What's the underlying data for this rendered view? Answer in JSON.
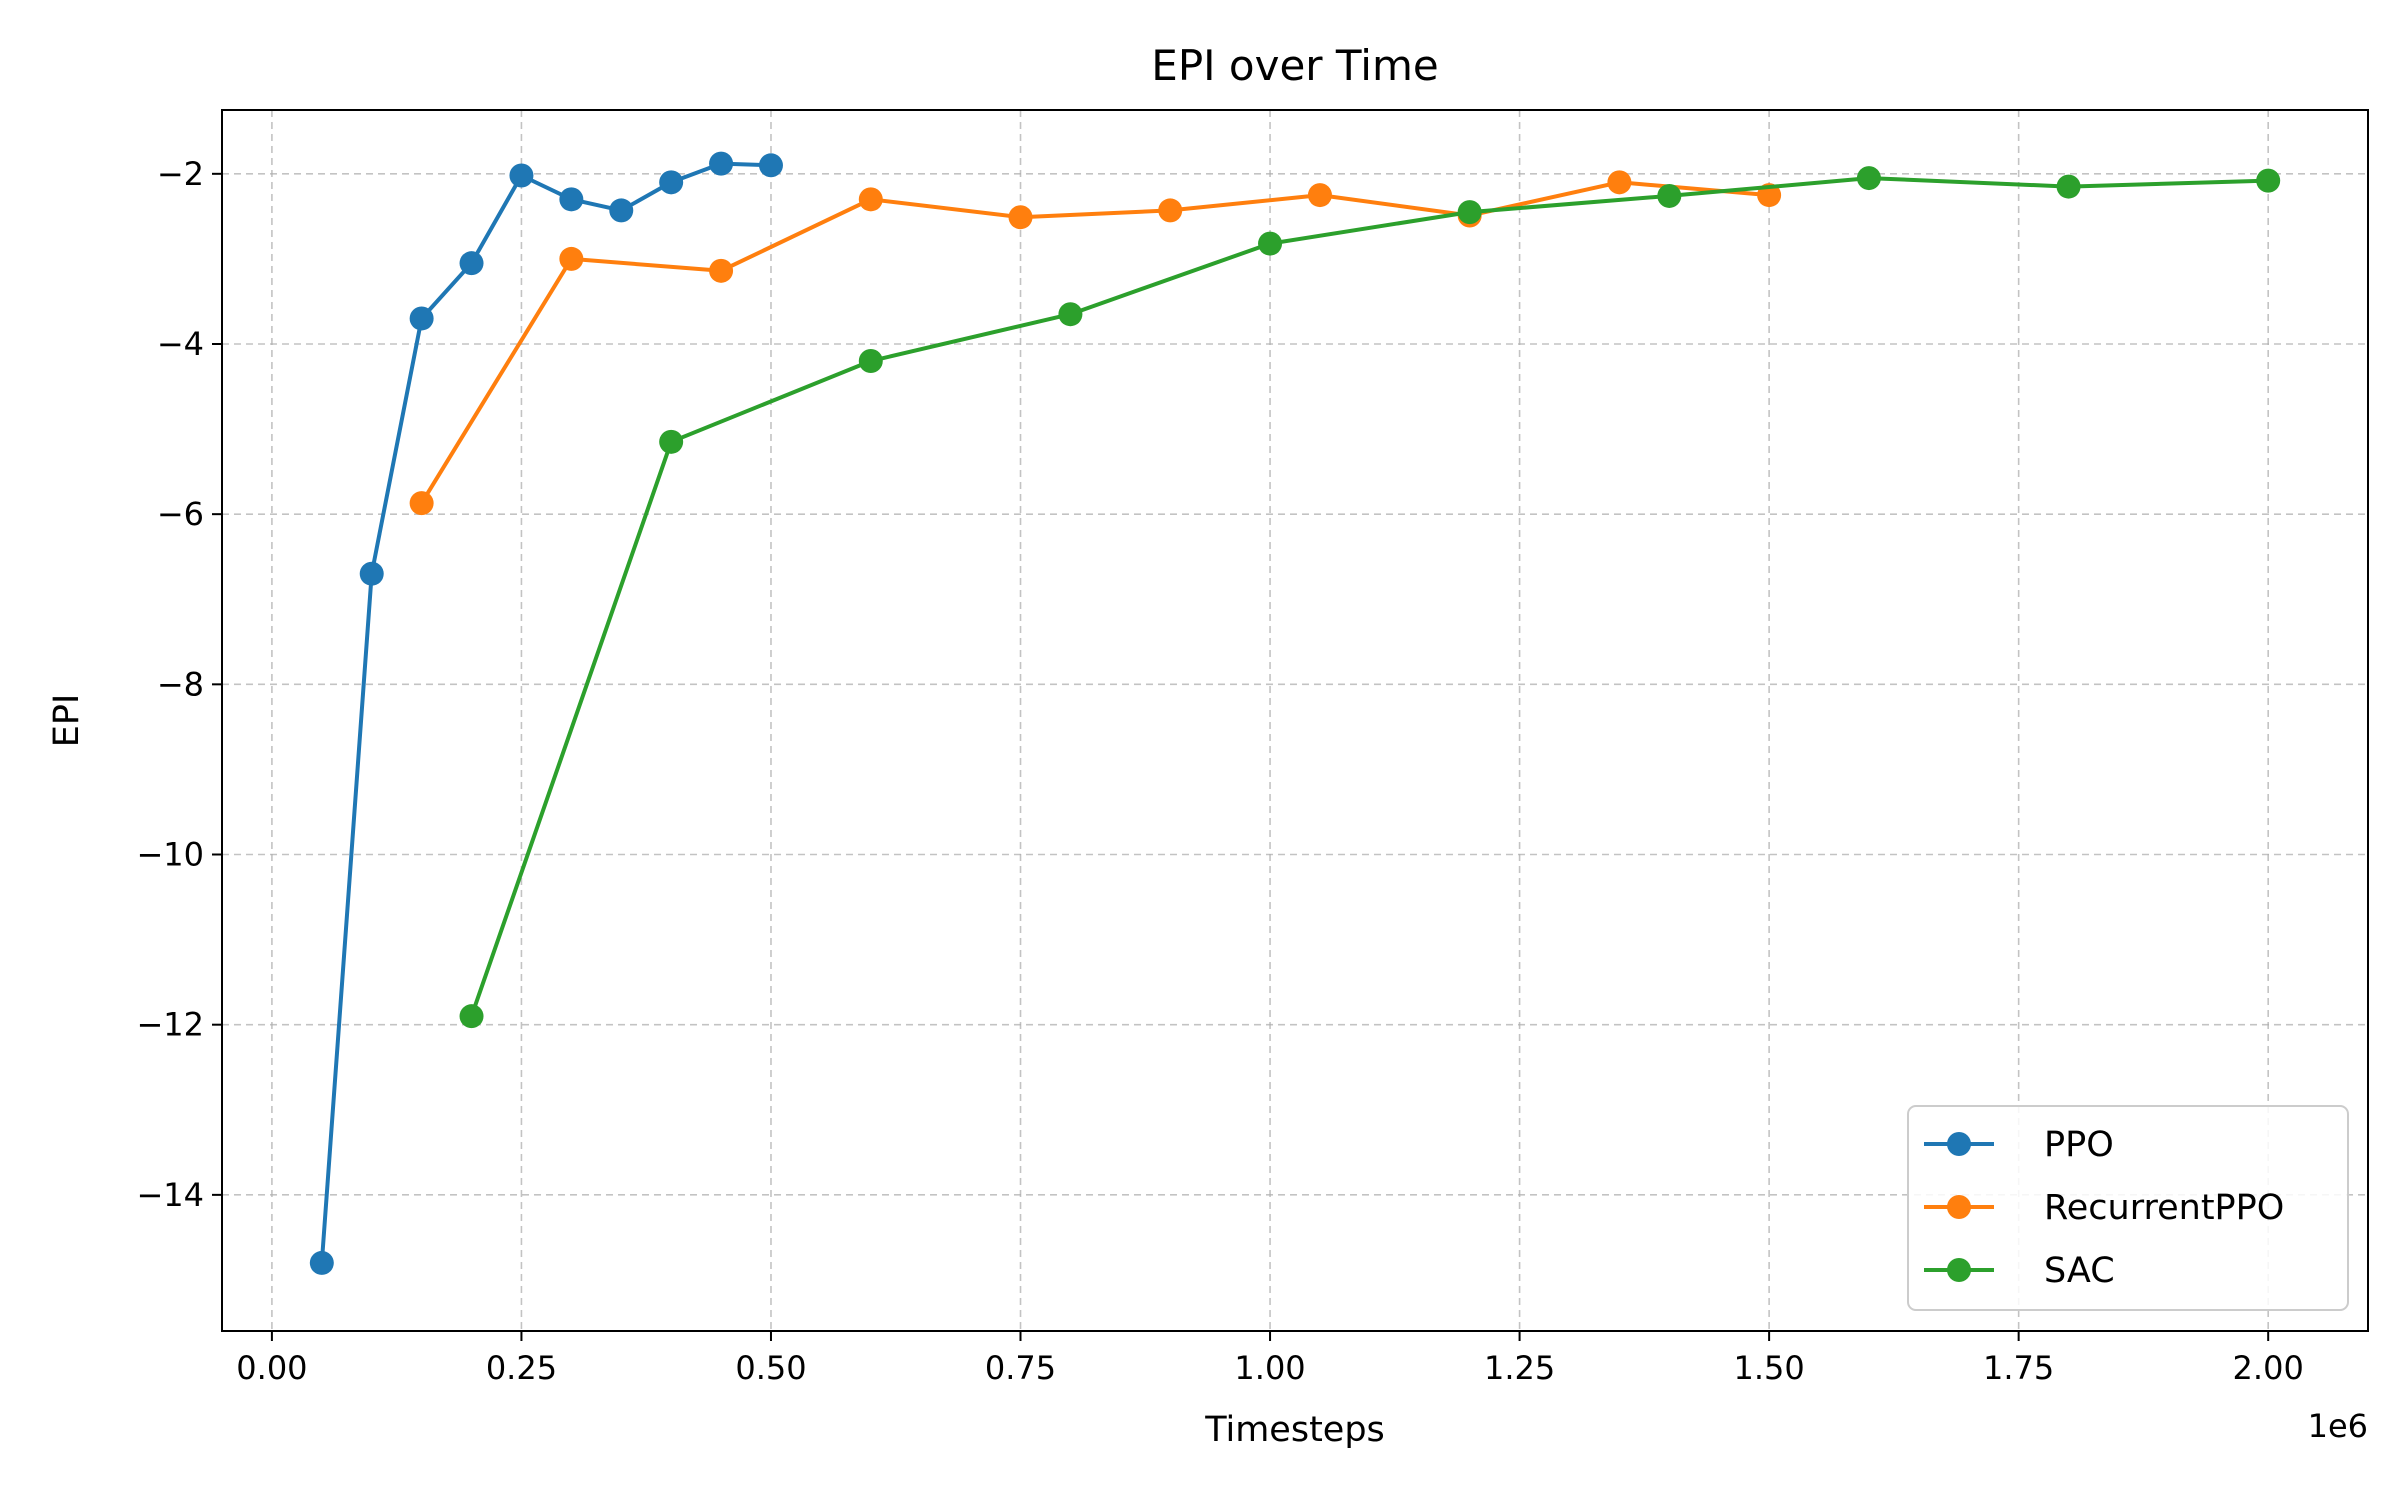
{
  "chart_data": {
    "type": "line",
    "title": "EPI over Time",
    "xlabel": "Timesteps",
    "ylabel": "EPI",
    "x_offset_text": "1e6",
    "x_scale": 1000000,
    "xlim": [
      -0.05,
      2.1
    ],
    "ylim": [
      -15.6,
      -1.25
    ],
    "xticks": [
      0.0,
      0.25,
      0.5,
      0.75,
      1.0,
      1.25,
      1.5,
      1.75,
      2.0
    ],
    "xtick_labels": [
      "0.00",
      "0.25",
      "0.50",
      "0.75",
      "1.00",
      "1.25",
      "1.50",
      "1.75",
      "2.00"
    ],
    "yticks": [
      -2,
      -4,
      -6,
      -8,
      -10,
      -12,
      -14
    ],
    "ytick_labels": [
      "−2",
      "−4",
      "−6",
      "−8",
      "−10",
      "−12",
      "−14"
    ],
    "grid": true,
    "legend_position": "bottom-right",
    "series": [
      {
        "name": "PPO",
        "color": "#1f77b4",
        "x": [
          50000,
          100000,
          150000,
          200000,
          250000,
          300000,
          350000,
          400000,
          450000,
          500000
        ],
        "y": [
          -14.8,
          -6.7,
          -3.7,
          -3.05,
          -2.02,
          -2.3,
          -2.43,
          -2.1,
          -1.88,
          -1.9
        ]
      },
      {
        "name": "RecurrentPPO",
        "color": "#ff7f0e",
        "x": [
          150000,
          300000,
          450000,
          600000,
          750000,
          900000,
          1050000,
          1200000,
          1350000,
          1500000
        ],
        "y": [
          -5.87,
          -3.0,
          -3.14,
          -2.3,
          -2.51,
          -2.43,
          -2.25,
          -2.49,
          -2.1,
          -2.25
        ]
      },
      {
        "name": "SAC",
        "color": "#2ca02c",
        "x": [
          200000,
          400000,
          600000,
          800000,
          1000000,
          1200000,
          1400000,
          1600000,
          1800000,
          2000000
        ],
        "y": [
          -11.9,
          -5.15,
          -4.2,
          -3.65,
          -2.82,
          -2.45,
          -2.26,
          -2.05,
          -2.15,
          -2.08
        ]
      }
    ]
  }
}
